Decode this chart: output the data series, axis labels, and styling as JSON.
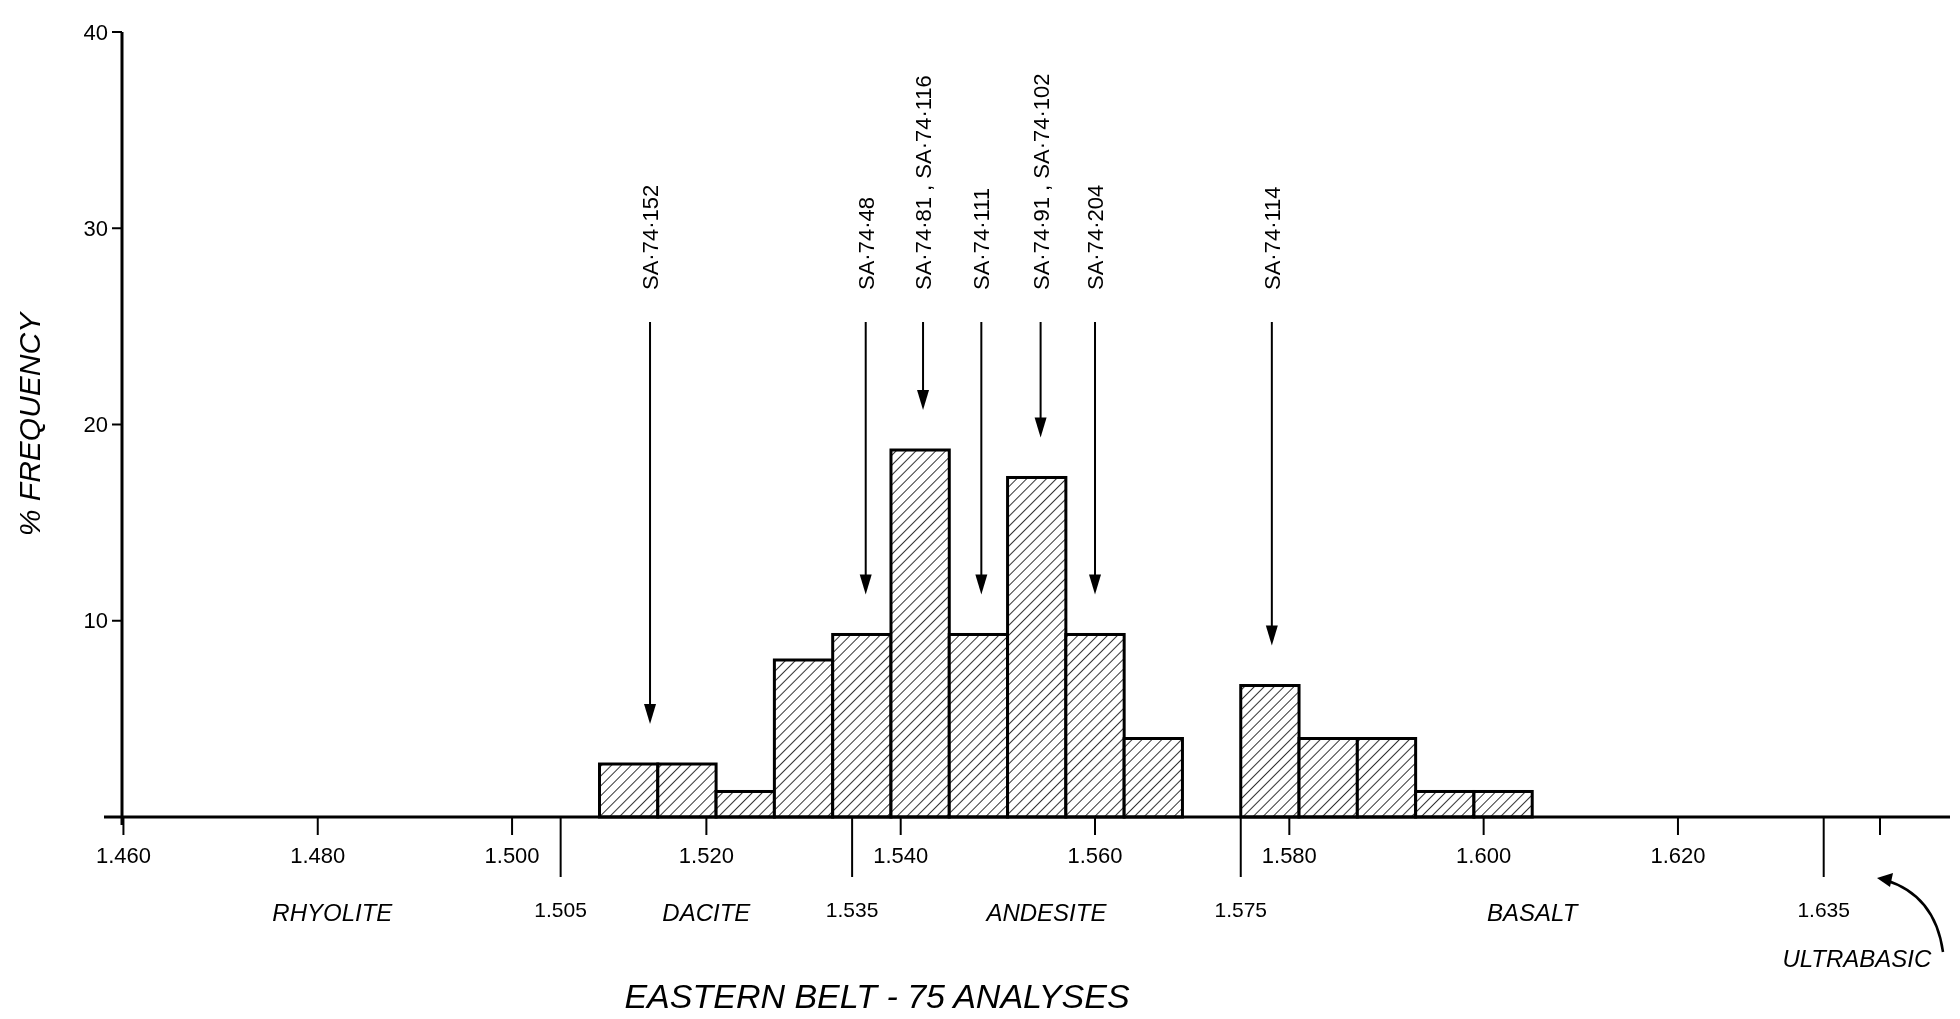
{
  "chart_data": {
    "type": "histogram",
    "title": "EASTERN BELT - 75 ANALYSES",
    "ylabel": "% FREQUENCY",
    "bins": [
      1.509,
      1.515,
      1.521,
      1.527,
      1.533,
      1.539,
      1.545,
      1.551,
      1.557,
      1.563,
      1.569,
      1.575,
      1.581,
      1.587,
      1.593,
      1.599,
      1.605
    ],
    "values": [
      2.7,
      2.7,
      1.3,
      8,
      9.3,
      18.7,
      9.3,
      17.3,
      9.3,
      4,
      0,
      6.7,
      4,
      4,
      1.3,
      1.3
    ],
    "color": "#000000",
    "xlim": [
      1.458,
      1.648
    ],
    "ylim": [
      0,
      40
    ],
    "xticks": [
      {
        "value": 1.46,
        "label": "1.460"
      },
      {
        "value": 1.48,
        "label": "1.480"
      },
      {
        "value": 1.5,
        "label": "1.500"
      },
      {
        "value": 1.52,
        "label": "1.520"
      },
      {
        "value": 1.54,
        "label": "1.540"
      },
      {
        "value": 1.56,
        "label": "1.560"
      },
      {
        "value": 1.58,
        "label": "1.580"
      },
      {
        "value": 1.6,
        "label": "1.600"
      },
      {
        "value": 1.62,
        "label": "1.620"
      }
    ],
    "x2lim": [
      1.458,
      1.648
    ],
    "x2ticks": [
      {
        "value": 1.505,
        "label": "1.505"
      },
      {
        "value": 1.535,
        "label": "1.535"
      },
      {
        "value": 1.575,
        "label": "1.575"
      },
      {
        "value": 1.635,
        "label": "1.635"
      }
    ],
    "yticks": [
      10,
      20,
      30,
      40
    ],
    "ref_lines": [
      {
        "axis": "x",
        "value": 1.5142,
        "label": "SA·74·152"
      },
      {
        "axis": "x",
        "value": 1.5364,
        "label": "SA·74·48"
      },
      {
        "axis": "x",
        "value": 1.5423,
        "label": "SA·74·81 , SA·74·116"
      },
      {
        "axis": "x",
        "value": 1.5483,
        "label": "SA·74·111"
      },
      {
        "axis": "x",
        "value": 1.5544,
        "label": "SA·74·91 , SA·74·102"
      },
      {
        "axis": "x",
        "value": 1.56,
        "label": "SA·74·204"
      },
      {
        "axis": "x",
        "value": 1.5782,
        "label": "SA·74·114"
      }
    ],
    "annotations": [
      "RHYOLITE",
      "DACITE",
      "ANDESITE",
      "BASALT",
      "ULTRABASIC"
    ],
    "grid": false
  }
}
